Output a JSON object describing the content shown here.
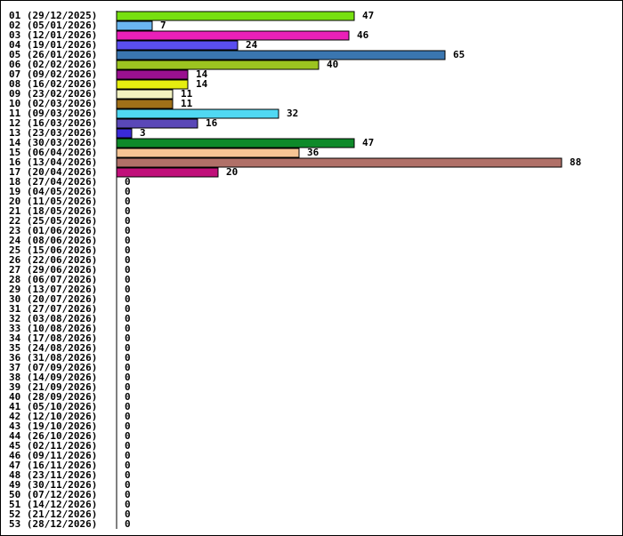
{
  "chart_data": {
    "type": "bar",
    "orientation": "horizontal",
    "categories": [
      "01 (29/12/2025)",
      "02 (05/01/2026)",
      "03 (12/01/2026)",
      "04 (19/01/2026)",
      "05 (26/01/2026)",
      "06 (02/02/2026)",
      "07 (09/02/2026)",
      "08 (16/02/2026)",
      "09 (23/02/2026)",
      "10 (02/03/2026)",
      "11 (09/03/2026)",
      "12 (16/03/2026)",
      "13 (23/03/2026)",
      "14 (30/03/2026)",
      "15 (06/04/2026)",
      "16 (13/04/2026)",
      "17 (20/04/2026)",
      "18 (27/04/2026)",
      "19 (04/05/2026)",
      "20 (11/05/2026)",
      "21 (18/05/2026)",
      "22 (25/05/2026)",
      "23 (01/06/2026)",
      "24 (08/06/2026)",
      "25 (15/06/2026)",
      "26 (22/06/2026)",
      "27 (29/06/2026)",
      "28 (06/07/2026)",
      "29 (13/07/2026)",
      "30 (20/07/2026)",
      "31 (27/07/2026)",
      "32 (03/08/2026)",
      "33 (10/08/2026)",
      "34 (17/08/2026)",
      "35 (24/08/2026)",
      "36 (31/08/2026)",
      "37 (07/09/2026)",
      "38 (14/09/2026)",
      "39 (21/09/2026)",
      "40 (28/09/2026)",
      "41 (05/10/2026)",
      "42 (12/10/2026)",
      "43 (19/10/2026)",
      "44 (26/10/2026)",
      "45 (02/11/2026)",
      "46 (09/11/2026)",
      "47 (16/11/2026)",
      "48 (23/11/2026)",
      "49 (30/11/2026)",
      "50 (07/12/2026)",
      "51 (14/12/2026)",
      "52 (21/12/2026)",
      "53 (28/12/2026)"
    ],
    "values": [
      47,
      7,
      46,
      24,
      65,
      40,
      14,
      14,
      11,
      11,
      32,
      16,
      3,
      47,
      36,
      88,
      20,
      0,
      0,
      0,
      0,
      0,
      0,
      0,
      0,
      0,
      0,
      0,
      0,
      0,
      0,
      0,
      0,
      0,
      0,
      0,
      0,
      0,
      0,
      0,
      0,
      0,
      0,
      0,
      0,
      0,
      0,
      0,
      0,
      0,
      0,
      0,
      0
    ],
    "colors": [
      "#77e010",
      "#6ab6f0",
      "#ea20b8",
      "#5a4ef0",
      "#3a76b0",
      "#9cc420",
      "#9a1090",
      "#e6ee10",
      "#f2f2c0",
      "#a07018",
      "#50d8f2",
      "#5a48b8",
      "#3a2ad8",
      "#0e8a2a",
      "#f6c494",
      "#b07068",
      "#c0107a"
    ],
    "xlim": [
      0,
      88
    ],
    "title": "",
    "xlabel": "",
    "ylabel": "",
    "grid": false,
    "legend": "none"
  }
}
